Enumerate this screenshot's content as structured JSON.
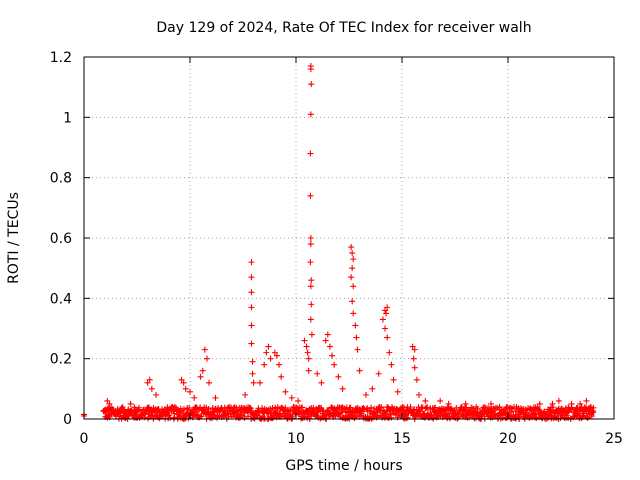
{
  "chart_data": {
    "type": "scatter",
    "title": "Day 129 of 2024, Rate Of TEC Index for receiver walh",
    "xlabel": "GPS time / hours",
    "ylabel": "ROTI / TECUs",
    "xlim": [
      0,
      25
    ],
    "ylim": [
      0,
      1.2
    ],
    "xticks": [
      "0",
      "5",
      "10",
      "15",
      "20",
      "25"
    ],
    "yticks": [
      "0",
      "0.2",
      "0.4",
      "0.6",
      "0.8",
      "1",
      "1.2"
    ],
    "grid": true,
    "marker": "+",
    "color": "#ff0000",
    "series": [
      {
        "name": "ROTI",
        "background_band": {
          "x_start": 0.9,
          "x_end": 24.0,
          "y_low": 0.0,
          "y_high": 0.04
        },
        "points": [
          [
            0.0,
            0.01
          ],
          [
            0.0,
            0.015
          ],
          [
            1.1,
            0.06
          ],
          [
            1.2,
            0.05
          ],
          [
            2.2,
            0.05
          ],
          [
            3.1,
            0.13
          ],
          [
            3.0,
            0.12
          ],
          [
            3.2,
            0.1
          ],
          [
            3.4,
            0.08
          ],
          [
            4.6,
            0.13
          ],
          [
            4.7,
            0.12
          ],
          [
            4.8,
            0.1
          ],
          [
            5.0,
            0.09
          ],
          [
            5.2,
            0.07
          ],
          [
            5.5,
            0.14
          ],
          [
            5.6,
            0.16
          ],
          [
            5.7,
            0.23
          ],
          [
            5.8,
            0.2
          ],
          [
            5.9,
            0.12
          ],
          [
            6.2,
            0.07
          ],
          [
            7.6,
            0.08
          ],
          [
            7.9,
            0.52
          ],
          [
            7.9,
            0.47
          ],
          [
            7.9,
            0.42
          ],
          [
            7.9,
            0.37
          ],
          [
            7.9,
            0.31
          ],
          [
            7.9,
            0.25
          ],
          [
            7.95,
            0.19
          ],
          [
            7.95,
            0.15
          ],
          [
            8.0,
            0.12
          ],
          [
            8.3,
            0.12
          ],
          [
            8.5,
            0.18
          ],
          [
            8.6,
            0.22
          ],
          [
            8.7,
            0.24
          ],
          [
            8.8,
            0.2
          ],
          [
            9.0,
            0.22
          ],
          [
            9.1,
            0.21
          ],
          [
            9.2,
            0.18
          ],
          [
            9.3,
            0.14
          ],
          [
            9.5,
            0.09
          ],
          [
            9.8,
            0.07
          ],
          [
            10.1,
            0.06
          ],
          [
            10.4,
            0.26
          ],
          [
            10.5,
            0.24
          ],
          [
            10.55,
            0.22
          ],
          [
            10.6,
            0.2
          ],
          [
            10.6,
            0.16
          ],
          [
            10.7,
            1.17
          ],
          [
            10.7,
            1.16
          ],
          [
            10.72,
            1.11
          ],
          [
            10.7,
            1.01
          ],
          [
            10.68,
            0.88
          ],
          [
            10.68,
            0.74
          ],
          [
            10.7,
            0.6
          ],
          [
            10.7,
            0.58
          ],
          [
            10.68,
            0.52
          ],
          [
            10.72,
            0.46
          ],
          [
            10.7,
            0.44
          ],
          [
            10.72,
            0.38
          ],
          [
            10.7,
            0.33
          ],
          [
            10.75,
            0.28
          ],
          [
            11.0,
            0.15
          ],
          [
            11.2,
            0.12
          ],
          [
            11.4,
            0.26
          ],
          [
            11.5,
            0.28
          ],
          [
            11.6,
            0.24
          ],
          [
            11.7,
            0.21
          ],
          [
            11.8,
            0.18
          ],
          [
            12.0,
            0.14
          ],
          [
            12.2,
            0.1
          ],
          [
            12.6,
            0.57
          ],
          [
            12.65,
            0.55
          ],
          [
            12.7,
            0.53
          ],
          [
            12.65,
            0.5
          ],
          [
            12.6,
            0.47
          ],
          [
            12.7,
            0.44
          ],
          [
            12.65,
            0.39
          ],
          [
            12.7,
            0.35
          ],
          [
            12.8,
            0.31
          ],
          [
            12.85,
            0.27
          ],
          [
            12.9,
            0.23
          ],
          [
            13.0,
            0.16
          ],
          [
            13.3,
            0.08
          ],
          [
            13.6,
            0.1
          ],
          [
            13.9,
            0.15
          ],
          [
            14.1,
            0.33
          ],
          [
            14.2,
            0.36
          ],
          [
            14.3,
            0.37
          ],
          [
            14.25,
            0.35
          ],
          [
            14.2,
            0.3
          ],
          [
            14.3,
            0.27
          ],
          [
            14.4,
            0.22
          ],
          [
            14.5,
            0.18
          ],
          [
            14.6,
            0.13
          ],
          [
            14.8,
            0.09
          ],
          [
            15.5,
            0.24
          ],
          [
            15.6,
            0.23
          ],
          [
            15.55,
            0.2
          ],
          [
            15.6,
            0.17
          ],
          [
            15.7,
            0.13
          ],
          [
            15.8,
            0.08
          ],
          [
            16.1,
            0.06
          ],
          [
            16.8,
            0.06
          ],
          [
            17.2,
            0.05
          ],
          [
            18.0,
            0.05
          ],
          [
            18.5,
            0.04
          ],
          [
            19.2,
            0.05
          ],
          [
            19.6,
            0.04
          ],
          [
            20.4,
            0.04
          ],
          [
            21.5,
            0.05
          ],
          [
            22.1,
            0.05
          ],
          [
            22.4,
            0.06
          ],
          [
            23.0,
            0.05
          ],
          [
            23.4,
            0.05
          ],
          [
            23.7,
            0.06
          ],
          [
            23.9,
            0.04
          ]
        ]
      }
    ]
  }
}
